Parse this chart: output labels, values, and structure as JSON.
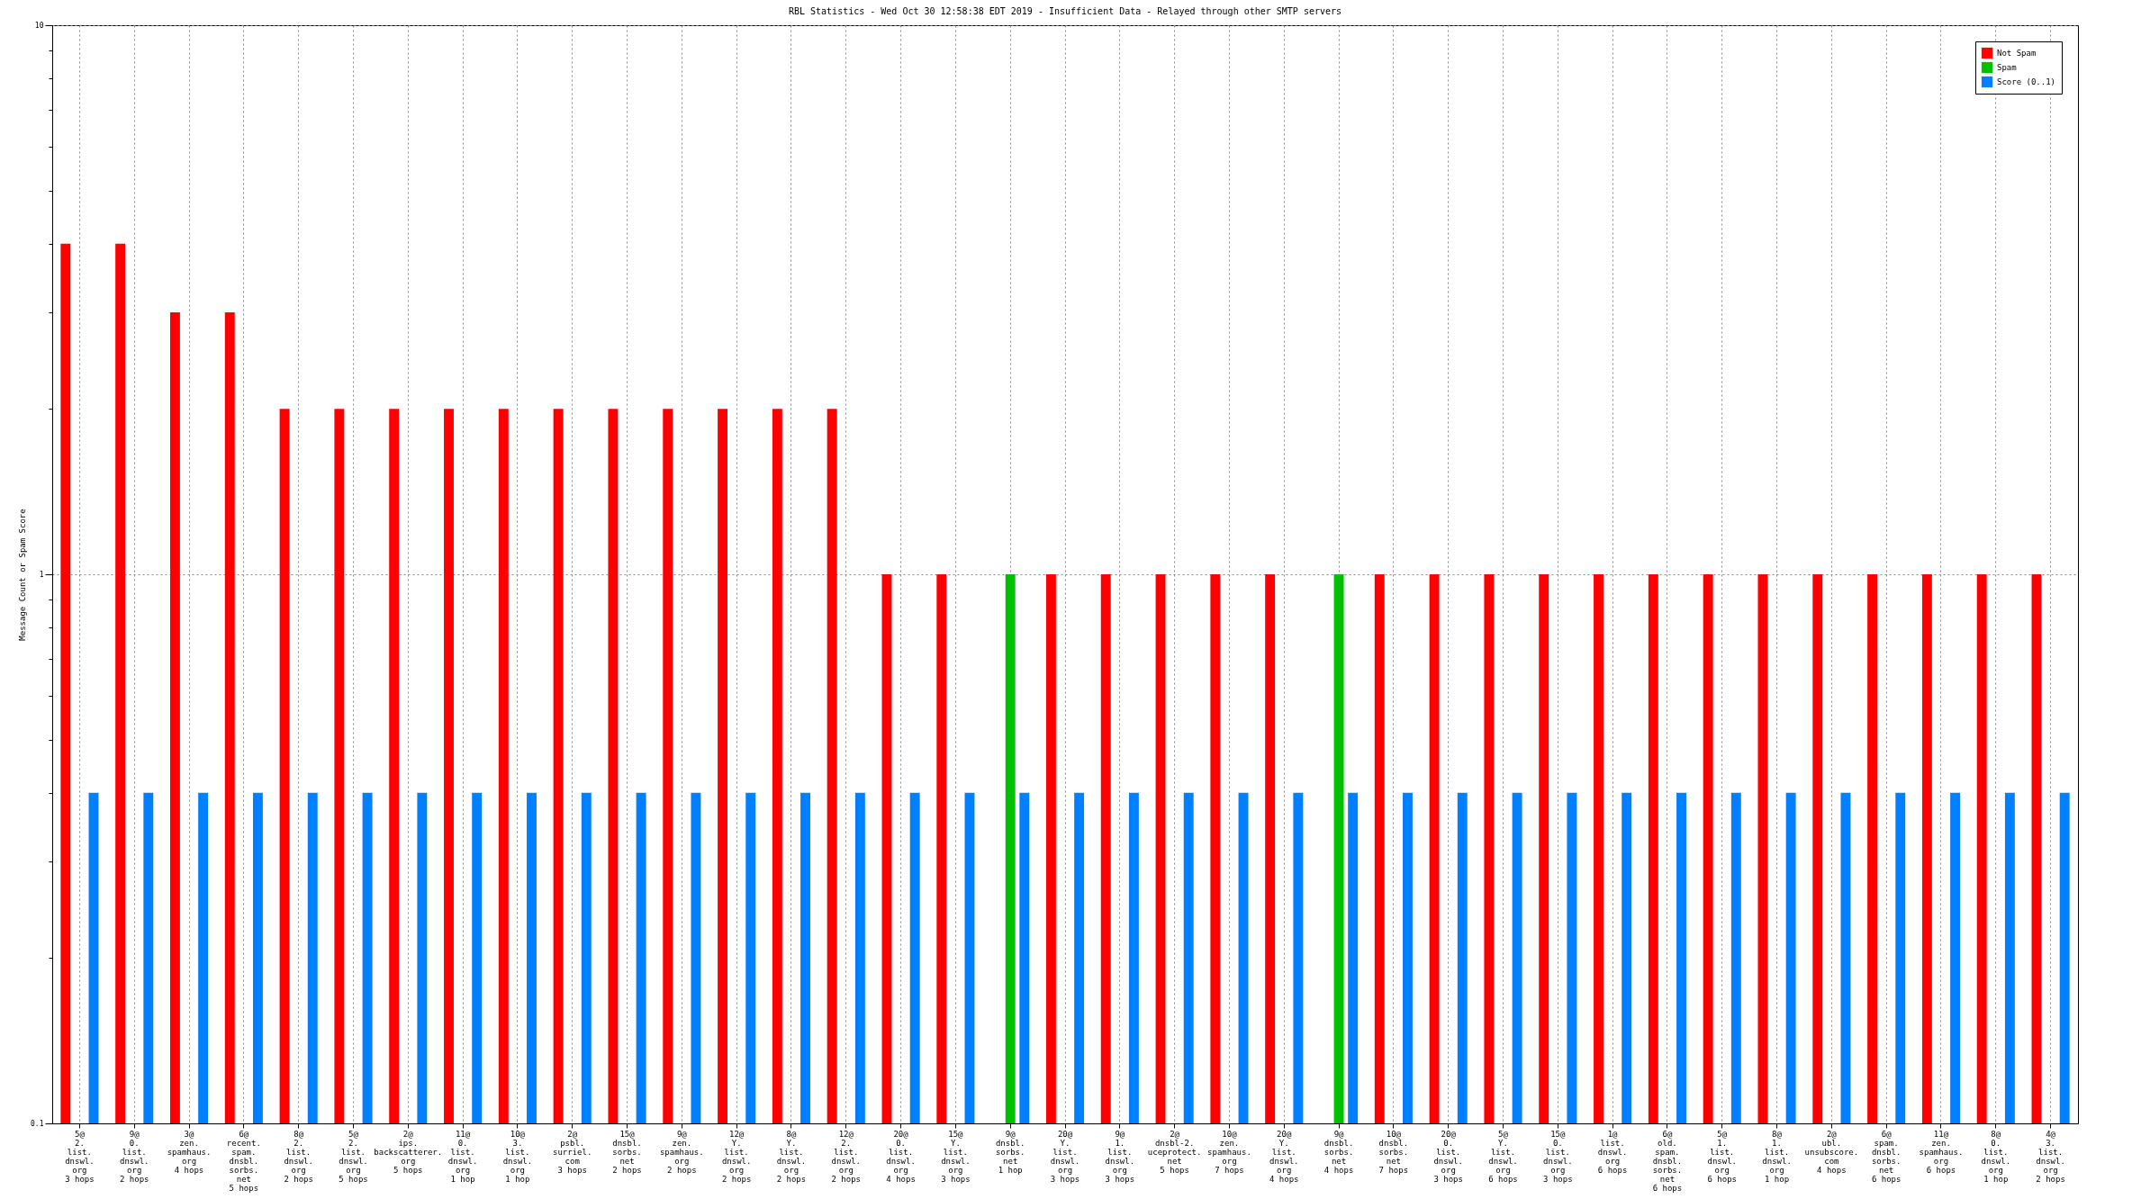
{
  "chart_data": {
    "type": "bar",
    "title": "RBL Statistics - Wed Oct 30 12:58:38 EDT 2019 - Insufficient Data - Relayed through other SMTP servers",
    "ylabel": "Message Count or Spam Score",
    "categories": [
      "5@\n2.\nlist.\ndnswl.\norg\n3 hops",
      "9@\n0.\nlist.\ndnswl.\norg\n2 hops",
      "3@\nzen.\nspamhaus.\norg\n4 hops",
      "6@\nrecent.\nspam.\ndnsbl.\nsorbs.\nnet\n5 hops",
      "8@\n2.\nlist.\ndnswl.\norg\n2 hops",
      "5@\n2.\nlist.\ndnswl.\norg\n5 hops",
      "2@\nips.\nbackscatterer.\norg\n5 hops",
      "11@\n0.\nlist.\ndnswl.\norg\n1 hop",
      "10@\n3.\nlist.\ndnswl.\norg\n1 hop",
      "2@\npsbl.\nsurriel.\ncom\n3 hops",
      "15@\ndnsbl.\nsorbs.\nnet\n2 hops",
      "9@\nzen.\nspamhaus.\norg\n2 hops",
      "12@\nY.\nlist.\ndnswl.\norg\n2 hops",
      "8@\nY.\nlist.\ndnswl.\norg\n2 hops",
      "12@\n2.\nlist.\ndnswl.\norg\n2 hops",
      "20@\n0.\nlist.\ndnswl.\norg\n4 hops",
      "15@\nY.\nlist.\ndnswl.\norg\n3 hops",
      "9@\ndnsbl.\nsorbs.\nnet\n1 hop",
      "20@\nY.\nlist.\ndnswl.\norg\n3 hops",
      "9@\n1.\nlist.\ndnswl.\norg\n3 hops",
      "2@\ndnsbl-2.\nuceprotect.\nnet\n5 hops",
      "10@\nzen.\nspamhaus.\norg\n7 hops",
      "20@\nY.\nlist.\ndnswl.\norg\n4 hops",
      "9@\ndnsbl.\nsorbs.\nnet\n4 hops",
      "10@\ndnsbl.\nsorbs.\nnet\n7 hops",
      "20@\n0.\nlist.\ndnswl.\norg\n3 hops",
      "5@\nY.\nlist.\ndnswl.\norg\n6 hops",
      "15@\n0.\nlist.\ndnswl.\norg\n3 hops",
      "1@\nlist.\ndnswl.\norg\n6 hops",
      "6@\nold.\nspam.\ndnsbl.\nsorbs.\nnet\n6 hops",
      "5@\n1.\nlist.\ndnswl.\norg\n6 hops",
      "8@\n1.\nlist.\ndnswl.\norg\n1 hop",
      "2@\nubl.\nunsubscore.\ncom\n4 hops",
      "6@\nspam.\ndnsbl.\nsorbs.\nnet\n6 hops",
      "11@\nzen.\nspamhaus.\norg\n6 hops",
      "8@\n0.\nlist.\ndnswl.\norg\n1 hop",
      "4@\n3.\nlist.\ndnswl.\norg\n2 hops"
    ],
    "series": [
      {
        "name": "Not Spam",
        "color": "#ff0000",
        "values": [
          4,
          4,
          3,
          3,
          2,
          2,
          2,
          2,
          2,
          2,
          2,
          2,
          2,
          2,
          2,
          1,
          1,
          null,
          1,
          1,
          1,
          1,
          1,
          null,
          1,
          1,
          1,
          1,
          1,
          1,
          1,
          1,
          1,
          1,
          1,
          1,
          1
        ]
      },
      {
        "name": "Spam",
        "color": "#00c000",
        "values": [
          null,
          null,
          null,
          null,
          null,
          null,
          null,
          null,
          null,
          null,
          null,
          null,
          null,
          null,
          null,
          null,
          null,
          1,
          null,
          null,
          null,
          null,
          null,
          1,
          null,
          null,
          null,
          null,
          null,
          null,
          null,
          null,
          null,
          null,
          null,
          null,
          null
        ]
      },
      {
        "name": "Score (0..1)",
        "color": "#0080ff",
        "values": [
          0.4,
          0.4,
          0.4,
          0.4,
          0.4,
          0.4,
          0.4,
          0.4,
          0.4,
          0.4,
          0.4,
          0.4,
          0.4,
          0.4,
          0.4,
          0.4,
          0.4,
          0.4,
          0.4,
          0.4,
          0.4,
          0.4,
          0.4,
          0.4,
          0.4,
          0.4,
          0.4,
          0.4,
          0.4,
          0.4,
          0.4,
          0.4,
          0.4,
          0.4,
          0.4,
          0.4,
          0.4
        ]
      }
    ],
    "log": true,
    "ylim": [
      0.1,
      10
    ],
    "yticks": [
      {
        "value": 0.1,
        "label": "0.1"
      },
      {
        "value": 0.2,
        "label": null
      },
      {
        "value": 0.3,
        "label": null
      },
      {
        "value": 0.4,
        "label": null
      },
      {
        "value": 0.5,
        "label": null
      },
      {
        "value": 0.6,
        "label": null
      },
      {
        "value": 0.7,
        "label": null
      },
      {
        "value": 0.8,
        "label": null
      },
      {
        "value": 0.9,
        "label": null
      },
      1,
      {
        "value": 2,
        "label": null
      },
      {
        "value": 3,
        "label": null
      },
      {
        "value": 4,
        "label": null
      },
      {
        "value": 5,
        "label": null
      },
      {
        "value": 6,
        "label": null
      },
      {
        "value": 7,
        "label": null
      },
      {
        "value": 8,
        "label": null
      },
      {
        "value": 9,
        "label": null
      },
      10
    ],
    "grid": true,
    "legend": "top right"
  }
}
